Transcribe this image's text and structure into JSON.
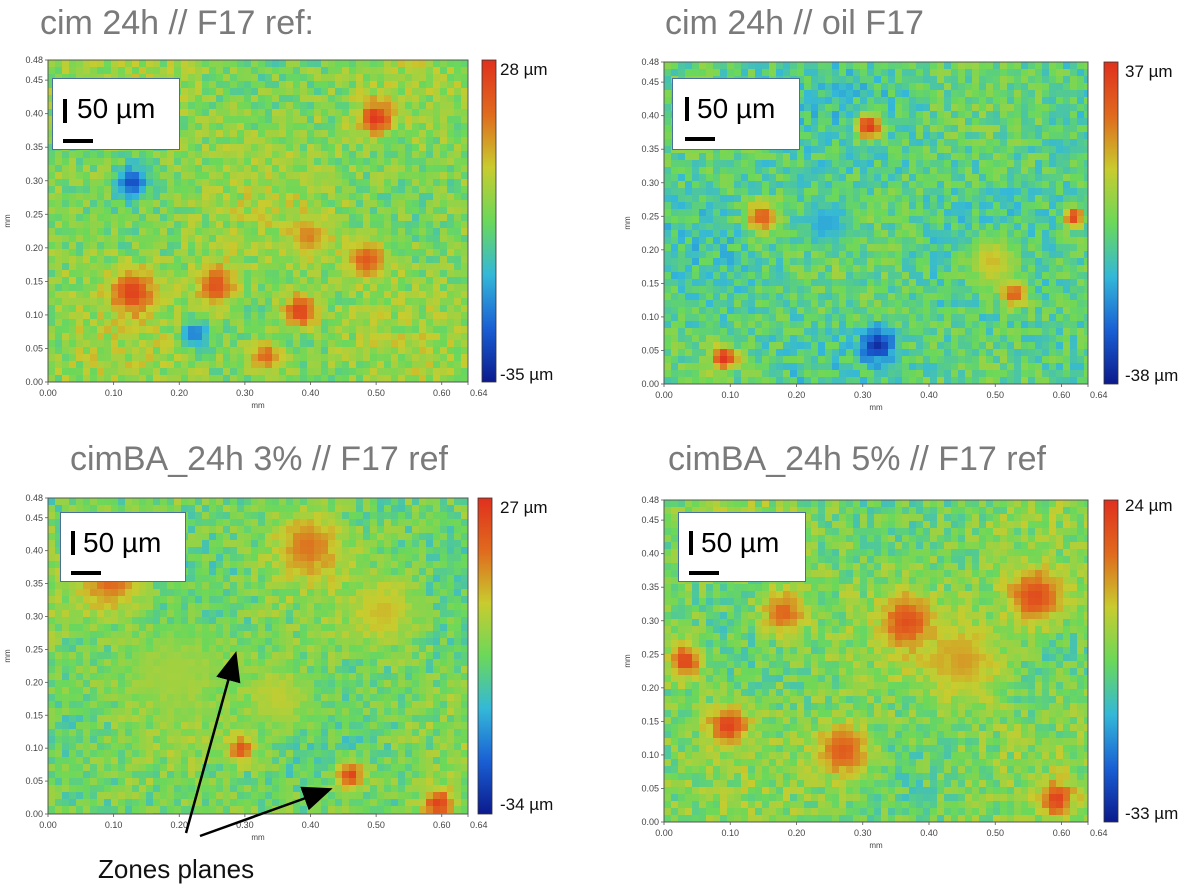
{
  "axis_unit": "mm",
  "x_ticks": [
    "0.00",
    "0.10",
    "0.20",
    "0.30",
    "0.40",
    "0.50",
    "0.60",
    "0.64"
  ],
  "y_ticks": [
    "0.00",
    "0.05",
    "0.10",
    "0.15",
    "0.20",
    "0.25",
    "0.30",
    "0.35",
    "0.40",
    "0.45",
    "0.48"
  ],
  "colormap": [
    "#0b1a8c",
    "#1a5fd4",
    "#34b8d8",
    "#6bd85a",
    "#c8cc2e",
    "#e06a1e",
    "#e0301e"
  ],
  "panels": [
    {
      "title": "cim  24h // F17 ref:",
      "scale_bar": "50 µm",
      "colorbar": {
        "max_label": "28 µm",
        "min_label": "-35 µm"
      },
      "base_level": 0.55
    },
    {
      "title": "cim  24h // oil F17",
      "scale_bar": "50 µm",
      "colorbar": {
        "max_label": "37 µm",
        "min_label": "-38 µm"
      },
      "base_level": 0.45
    },
    {
      "title": "cimBA_24h 3% // F17 ref",
      "scale_bar": "50 µm",
      "colorbar": {
        "max_label": "27 µm",
        "min_label": "-34 µm"
      },
      "base_level": 0.5,
      "annotation": "Zones planes"
    },
    {
      "title": "cimBA_24h 5% // F17 ref",
      "scale_bar": "50 µm",
      "colorbar": {
        "max_label": "24 µm",
        "min_label": "-33 µm"
      },
      "base_level": 0.52
    }
  ]
}
